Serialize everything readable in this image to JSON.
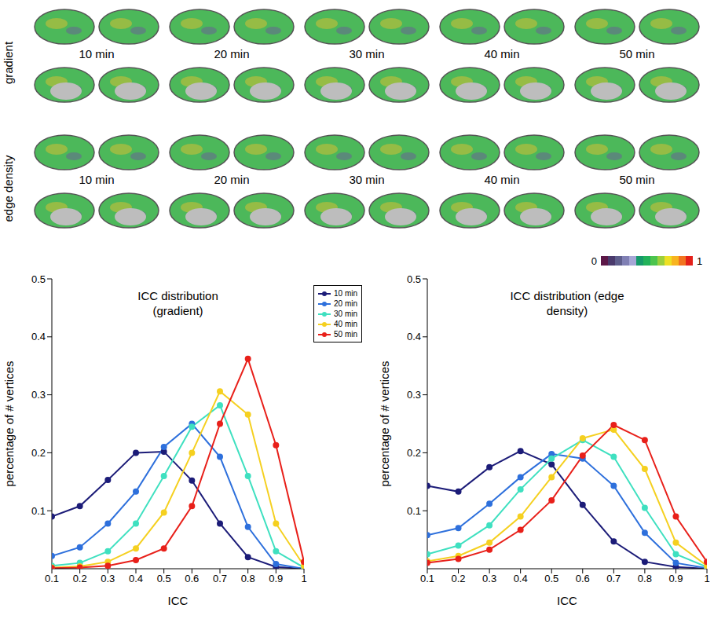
{
  "brain_maps": {
    "rows": [
      "gradient",
      "edge density"
    ],
    "durations": [
      "10 min",
      "20 min",
      "30 min",
      "40 min",
      "50 min"
    ],
    "colorbar": {
      "range": [
        0,
        1
      ],
      "ticks": [
        0,
        1
      ],
      "colors": [
        "#5c1848",
        "#4a3a6c",
        "#5e5e8c",
        "#8080b4",
        "#a6a6d6",
        "#169a6a",
        "#22b25a",
        "#4cc44e",
        "#9ccf3c",
        "#eee024",
        "#f8b420",
        "#f27420",
        "#e4201a"
      ]
    }
  },
  "chart_data": [
    {
      "type": "line",
      "title": "ICC distribution (gradient)",
      "x_label": "ICC",
      "y_label": "percentage of # vertices",
      "x": [
        0.1,
        0.2,
        0.3,
        0.4,
        0.5,
        0.6,
        0.7,
        0.8,
        0.9,
        1
      ],
      "xlim": [
        0.1,
        1
      ],
      "xticks": [
        0.1,
        0.2,
        0.3,
        0.4,
        0.5,
        0.6,
        0.7,
        0.8,
        0.9,
        1
      ],
      "ylim": [
        0,
        0.5
      ],
      "yticks": [
        0.1,
        0.2,
        0.3,
        0.4,
        0.5
      ],
      "marker": "circle",
      "legend": "right",
      "series": [
        {
          "name": "10 min",
          "color": "#1c1c78",
          "values": [
            0.09,
            0.108,
            0.153,
            0.2,
            0.202,
            0.152,
            0.078,
            0.02,
            0.003,
            0
          ]
        },
        {
          "name": "20 min",
          "color": "#2e70dc",
          "values": [
            0.022,
            0.037,
            0.078,
            0.133,
            0.21,
            0.25,
            0.193,
            0.072,
            0.008,
            0
          ]
        },
        {
          "name": "30 min",
          "color": "#3fe0c0",
          "values": [
            0.005,
            0.01,
            0.03,
            0.078,
            0.16,
            0.245,
            0.282,
            0.16,
            0.03,
            0.002
          ]
        },
        {
          "name": "40 min",
          "color": "#f5d020",
          "values": [
            0.002,
            0.004,
            0.012,
            0.035,
            0.097,
            0.2,
            0.306,
            0.266,
            0.078,
            0.005
          ]
        },
        {
          "name": "50 min",
          "color": "#e8201a",
          "values": [
            0.001,
            0.002,
            0.005,
            0.015,
            0.035,
            0.108,
            0.25,
            0.362,
            0.213,
            0.012
          ]
        }
      ]
    },
    {
      "type": "line",
      "title": "ICC distribution (edge density)",
      "x_label": "ICC",
      "y_label": "percentage of # vertices",
      "x": [
        0.1,
        0.2,
        0.3,
        0.4,
        0.5,
        0.6,
        0.7,
        0.8,
        0.9,
        1
      ],
      "xlim": [
        0.1,
        1
      ],
      "xticks": [
        0.1,
        0.2,
        0.3,
        0.4,
        0.5,
        0.6,
        0.7,
        0.8,
        0.9,
        1
      ],
      "ylim": [
        0,
        0.5
      ],
      "yticks": [
        0.1,
        0.2,
        0.3,
        0.4,
        0.5
      ],
      "marker": "circle",
      "series": [
        {
          "name": "10 min",
          "color": "#1c1c78",
          "values": [
            0.143,
            0.133,
            0.175,
            0.203,
            0.18,
            0.11,
            0.047,
            0.012,
            0.003,
            0
          ]
        },
        {
          "name": "20 min",
          "color": "#2e70dc",
          "values": [
            0.058,
            0.07,
            0.112,
            0.158,
            0.198,
            0.19,
            0.143,
            0.062,
            0.01,
            0.001
          ]
        },
        {
          "name": "30 min",
          "color": "#3fe0c0",
          "values": [
            0.025,
            0.04,
            0.075,
            0.137,
            0.19,
            0.222,
            0.193,
            0.105,
            0.025,
            0.003
          ]
        },
        {
          "name": "40 min",
          "color": "#f5d020",
          "values": [
            0.013,
            0.022,
            0.045,
            0.09,
            0.158,
            0.225,
            0.24,
            0.172,
            0.045,
            0.005
          ]
        },
        {
          "name": "50 min",
          "color": "#e8201a",
          "values": [
            0.01,
            0.017,
            0.033,
            0.067,
            0.118,
            0.195,
            0.248,
            0.222,
            0.09,
            0.012
          ]
        }
      ]
    }
  ]
}
